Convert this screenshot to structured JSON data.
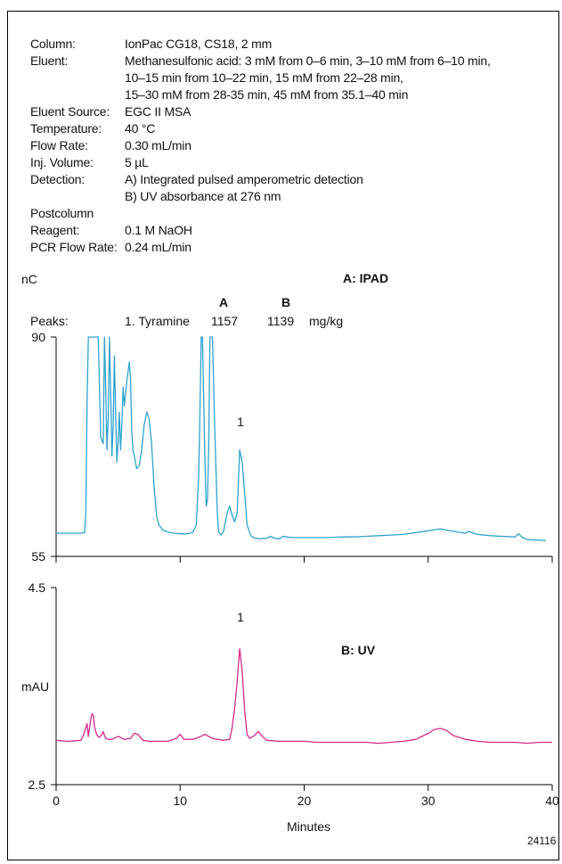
{
  "conditions": [
    {
      "label": "Column:",
      "value": "IonPac CG18, CS18, 2 mm"
    },
    {
      "label": "Eluent:",
      "value": "Methanesulfonic acid: 3 mM from 0–6 min, 3–10 mM from 6–10 min,\n10–15 min from 10–22 min, 15 mM from 22–28 min,\n15–30 mM from 28-35 min, 45 mM from 35.1–40 min"
    },
    {
      "label": "Eluent Source:",
      "value": "EGC II MSA"
    },
    {
      "label": "Temperature:",
      "value": "40 °C"
    },
    {
      "label": "Flow Rate:",
      "value": "0.30 mL/min"
    },
    {
      "label": "Inj. Volume:",
      "value": "5 µL"
    },
    {
      "label": "Detection:",
      "value": "A) Integrated pulsed amperometric detection\nB) UV absorbance at 276 nm"
    },
    {
      "label": "Postcolumn",
      "value": ""
    },
    {
      "label": "Reagent:",
      "value": "0.1 M NaOH"
    },
    {
      "label": "PCR Flow Rate:",
      "value": "0.24 mL/min"
    }
  ],
  "peaks": {
    "label": "Peaks:",
    "col_a": "A",
    "col_b": "B",
    "name": "1. Tyramine",
    "value_a": "1157",
    "value_b": "1139",
    "unit": "mg/kg"
  },
  "figure_id": "24116",
  "chart_data": [
    {
      "type": "line",
      "panel_label": "A: IPAD",
      "ylabel": "nC",
      "ylim": [
        55,
        90
      ],
      "xlim": [
        0,
        40
      ],
      "ytick_labels": [
        "90",
        "55"
      ],
      "color": "#2ea3cf",
      "peak_annotations": [
        {
          "label": "1",
          "x": 14.8
        }
      ],
      "series": [
        {
          "x": [
            0,
            1,
            2,
            2.3,
            2.4,
            2.5,
            2.6,
            2.7,
            3.2,
            3.4,
            3.6,
            3.8,
            3.9,
            4.0,
            4.1,
            4.2,
            4.3,
            4.4,
            4.5,
            4.6,
            4.7,
            4.8,
            4.9,
            5.0,
            5.1,
            5.2,
            5.3,
            5.4,
            5.5,
            5.7,
            5.9,
            6.0,
            6.1,
            6.2,
            6.3,
            6.5,
            6.7,
            6.9,
            7.1,
            7.3,
            7.5,
            7.7,
            7.9,
            8.1,
            8.3,
            8.6,
            9.0,
            9.5,
            10.0,
            10.5,
            11.0,
            11.3,
            11.5,
            11.6,
            11.7,
            11.8,
            11.9,
            12.0,
            12.1,
            12.2,
            12.3,
            12.4,
            12.5,
            12.6,
            12.8,
            13.0,
            13.1,
            13.3,
            13.5,
            13.8,
            14.0,
            14.2,
            14.4,
            14.6,
            14.8,
            15.0,
            15.2,
            15.4,
            15.7,
            16.0,
            16.5,
            17.0,
            17.3,
            17.6,
            18.0,
            18.3,
            18.6,
            19,
            20,
            21,
            22,
            23,
            24,
            25,
            26,
            27,
            28,
            29,
            30,
            31,
            32,
            33,
            33.3,
            33.6,
            34,
            35,
            36,
            37,
            37.3,
            37.6,
            38,
            38.5,
            39,
            39.5
          ],
          "values": [
            58.7,
            58.7,
            58.7,
            58.8,
            62,
            80,
            90,
            90,
            90,
            90,
            74,
            73,
            90,
            82,
            72,
            77,
            90,
            81,
            71,
            76,
            87,
            78,
            70,
            73,
            78,
            72,
            76,
            82,
            79,
            83,
            86,
            83,
            75,
            72,
            71,
            69,
            69.5,
            72,
            76,
            78,
            77,
            73,
            66,
            61.5,
            60,
            59.2,
            58.9,
            58.7,
            58.6,
            58.6,
            58.8,
            60,
            68,
            78,
            90,
            90,
            80,
            70,
            63,
            64,
            72,
            90,
            90,
            90,
            75,
            62,
            58.9,
            58.4,
            59,
            62,
            63,
            61.5,
            60.5,
            62,
            72,
            70,
            65,
            60,
            58.3,
            57.9,
            57.8,
            57.9,
            58.2,
            57.9,
            57.8,
            58.2,
            58.1,
            58.0,
            58.0,
            58.0,
            58.0,
            58.1,
            58.1,
            58.2,
            58.3,
            58.4,
            58.5,
            58.8,
            59.1,
            59.4,
            59.0,
            58.7,
            59.0,
            58.7,
            58.5,
            58.3,
            58.2,
            58.1,
            58.6,
            58.0,
            57.7,
            57.6,
            57.6,
            57.5
          ]
        }
      ]
    },
    {
      "type": "line",
      "panel_label": "B: UV",
      "ylabel": "mAU",
      "ylim": [
        2.5,
        4.5
      ],
      "xlim": [
        0,
        40
      ],
      "xlabel": "Minutes",
      "xtick_labels": [
        "0",
        "10",
        "20",
        "30",
        "40"
      ],
      "ytick_labels": [
        "4.5",
        "2.5"
      ],
      "color": "#d42a8c",
      "peak_annotations": [
        {
          "label": "1",
          "x": 14.8
        }
      ],
      "series": [
        {
          "x": [
            0,
            1,
            2,
            2.2,
            2.4,
            2.5,
            2.6,
            2.8,
            2.9,
            3.0,
            3.1,
            3.3,
            3.5,
            3.7,
            3.8,
            3.9,
            4.0,
            4.2,
            4.5,
            5.0,
            5.5,
            6.0,
            6.3,
            6.6,
            7.0,
            7.5,
            8,
            9,
            9.7,
            10.0,
            10.3,
            11,
            11.5,
            12,
            12.3,
            12.6,
            13,
            13.5,
            14,
            14.2,
            14.4,
            14.6,
            14.8,
            15.0,
            15.2,
            15.4,
            15.6,
            16.0,
            16.3,
            16.7,
            17,
            18,
            19,
            20,
            21,
            22,
            23,
            24,
            25,
            26,
            27,
            28,
            29,
            30,
            30.5,
            31,
            31.5,
            32,
            33,
            34,
            35,
            36,
            37,
            38,
            39,
            40
          ],
          "values": [
            2.95,
            2.94,
            2.95,
            3.0,
            3.08,
            3.12,
            2.99,
            3.17,
            3.22,
            3.2,
            3.08,
            3.0,
            2.98,
            3.01,
            3.04,
            3.0,
            2.97,
            2.96,
            2.96,
            2.99,
            2.96,
            2.97,
            3.02,
            3.01,
            2.95,
            2.94,
            2.94,
            2.94,
            2.97,
            3.01,
            2.96,
            2.96,
            2.98,
            3.01,
            2.99,
            2.97,
            2.96,
            2.95,
            2.96,
            3.08,
            3.28,
            3.55,
            3.88,
            3.65,
            3.25,
            3.01,
            2.97,
            3.0,
            3.04,
            2.98,
            2.95,
            2.94,
            2.94,
            2.94,
            2.93,
            2.93,
            2.93,
            2.93,
            2.93,
            2.92,
            2.93,
            2.94,
            2.96,
            3.02,
            3.06,
            3.07,
            3.05,
            3.0,
            2.96,
            2.94,
            2.93,
            2.93,
            2.93,
            2.92,
            2.93,
            2.93
          ]
        }
      ]
    }
  ]
}
